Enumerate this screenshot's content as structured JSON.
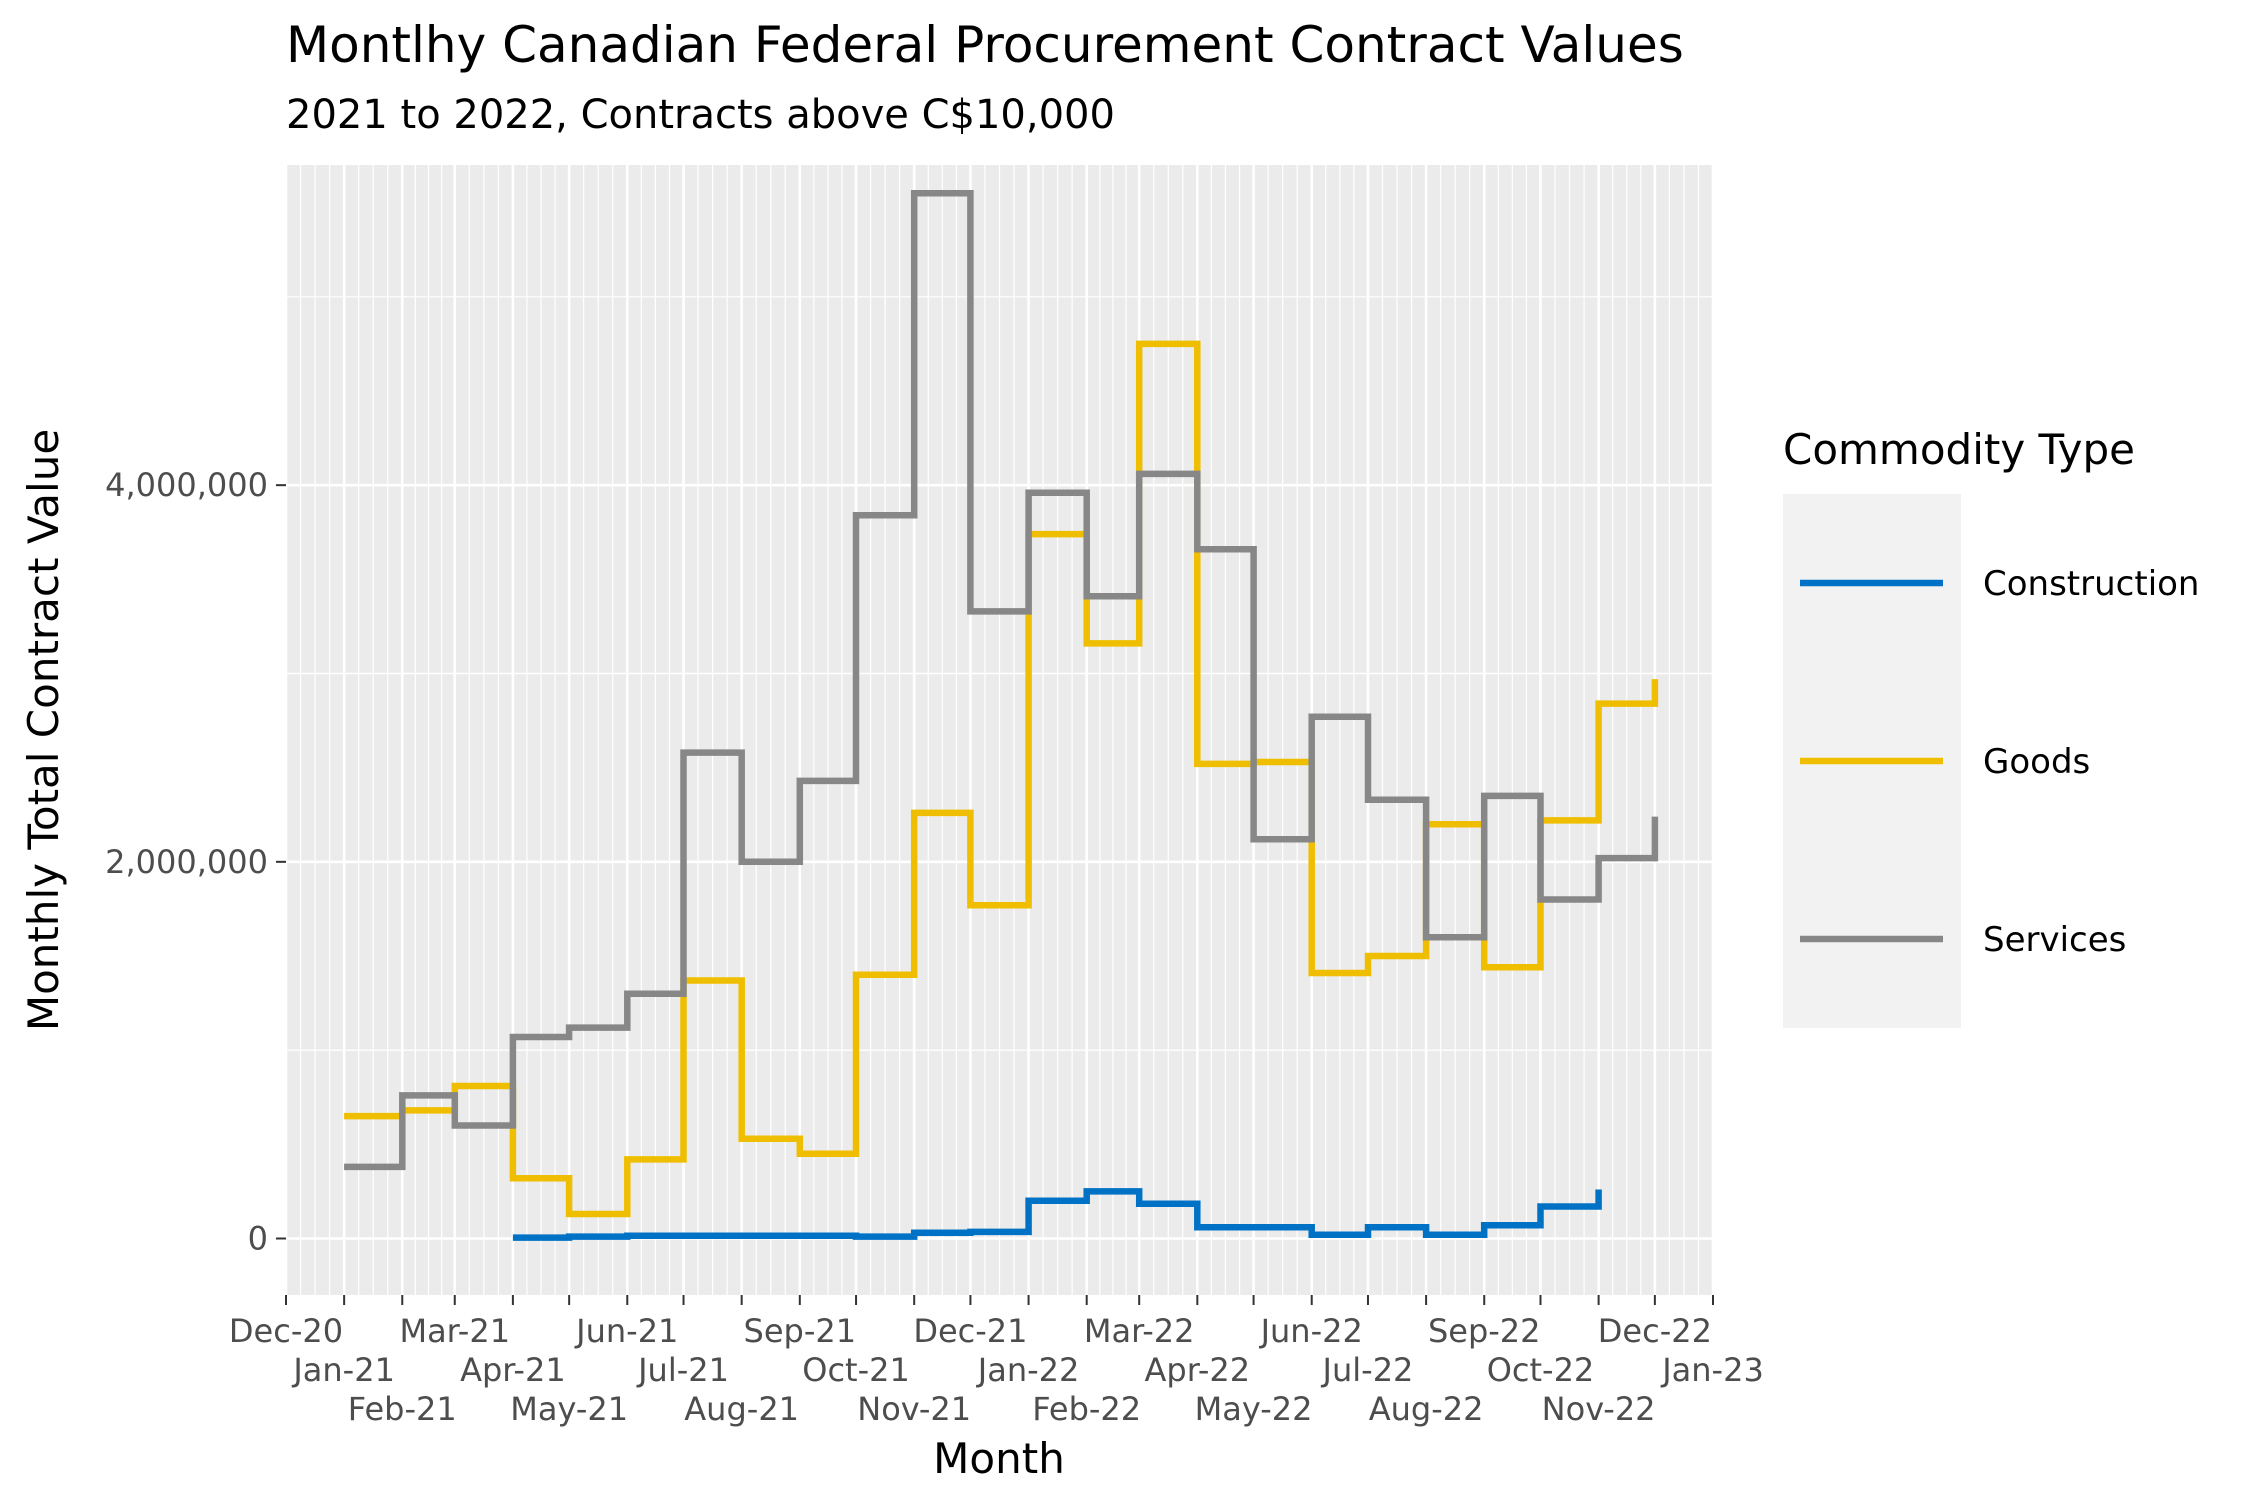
{
  "chart_data": {
    "type": "line",
    "step": true,
    "title": "Montlhy Canadian Federal Procurement Contract Values",
    "subtitle": "2021 to 2022, Contracts above C$10,000",
    "xlabel": "Month",
    "ylabel": "Monthly Total Contract Value",
    "xlim": [
      "2020-12-01",
      "2023-01-01"
    ],
    "ylim": [
      -300000,
      5700000
    ],
    "x_ticks": [
      "Dec-20",
      "Jan-21",
      "Feb-21",
      "Mar-21",
      "Apr-21",
      "May-21",
      "Jun-21",
      "Jul-21",
      "Aug-21",
      "Sep-21",
      "Oct-21",
      "Nov-21",
      "Dec-21",
      "Jan-22",
      "Feb-22",
      "Mar-22",
      "Apr-22",
      "May-22",
      "Jun-22",
      "Jul-22",
      "Aug-22",
      "Sep-22",
      "Oct-22",
      "Nov-22",
      "Dec-22",
      "Jan-23"
    ],
    "y_ticks": [
      0,
      2000000,
      4000000
    ],
    "y_tick_labels": [
      "0",
      "2,000,000",
      "4,000,000"
    ],
    "grid": true,
    "legend": {
      "title": "Commodity Type",
      "position": "right"
    },
    "series": [
      {
        "name": "Construction",
        "color": "#0072C6",
        "x": [
          "2021-04",
          "2021-05",
          "2021-06",
          "2021-07",
          "2021-08",
          "2021-09",
          "2021-10",
          "2021-11",
          "2021-12",
          "2022-01",
          "2022-02",
          "2022-03",
          "2022-04",
          "2022-05",
          "2022-06",
          "2022-07",
          "2022-08",
          "2022-09",
          "2022-10",
          "2022-11"
        ],
        "values": [
          5000,
          10000,
          15000,
          15000,
          15000,
          15000,
          10000,
          30000,
          35000,
          200000,
          250000,
          185000,
          60000,
          60000,
          20000,
          60000,
          20000,
          70000,
          170000,
          260000
        ]
      },
      {
        "name": "Goods",
        "color": "#F0BE00",
        "x": [
          "2021-01",
          "2021-02",
          "2021-03",
          "2021-04",
          "2021-05",
          "2021-06",
          "2021-07",
          "2021-08",
          "2021-09",
          "2021-10",
          "2021-11",
          "2021-12",
          "2022-01",
          "2022-02",
          "2022-03",
          "2022-04",
          "2022-05",
          "2022-06",
          "2022-07",
          "2022-08",
          "2022-09",
          "2022-10",
          "2022-11",
          "2022-12"
        ],
        "values": [
          650000,
          680000,
          810000,
          320000,
          130000,
          420000,
          1370000,
          530000,
          450000,
          1400000,
          2260000,
          1770000,
          3740000,
          3160000,
          4750000,
          2520000,
          2530000,
          1410000,
          1500000,
          2200000,
          1440000,
          2220000,
          2840000,
          2970000
        ]
      },
      {
        "name": "Services",
        "color": "#878787",
        "x": [
          "2021-01",
          "2021-02",
          "2021-03",
          "2021-04",
          "2021-05",
          "2021-06",
          "2021-07",
          "2021-08",
          "2021-09",
          "2021-10",
          "2021-11",
          "2021-12",
          "2022-01",
          "2022-02",
          "2022-03",
          "2022-04",
          "2022-05",
          "2022-06",
          "2022-07",
          "2022-08",
          "2022-09",
          "2022-10",
          "2022-11",
          "2022-12"
        ],
        "values": [
          380000,
          760000,
          600000,
          1070000,
          1120000,
          1300000,
          2580000,
          2000000,
          2430000,
          3840000,
          5550000,
          3330000,
          3960000,
          3410000,
          4060000,
          3660000,
          2120000,
          2770000,
          2330000,
          1600000,
          2350000,
          1800000,
          2020000,
          2240000
        ]
      }
    ]
  }
}
